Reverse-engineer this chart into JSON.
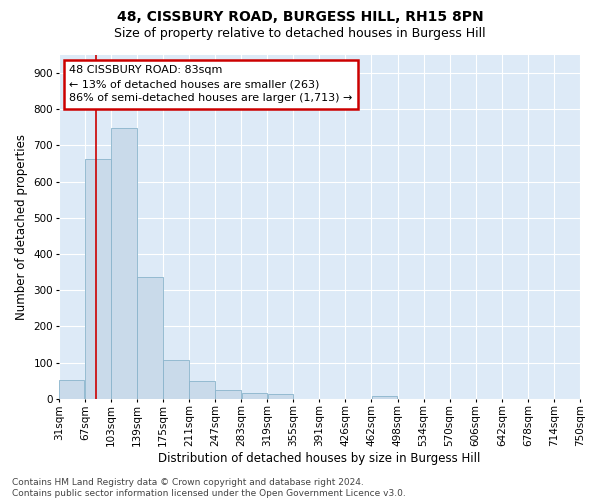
{
  "title1": "48, CISSBURY ROAD, BURGESS HILL, RH15 8PN",
  "title2": "Size of property relative to detached houses in Burgess Hill",
  "xlabel": "Distribution of detached houses by size in Burgess Hill",
  "ylabel": "Number of detached properties",
  "bin_labels": [
    "31sqm",
    "67sqm",
    "103sqm",
    "139sqm",
    "175sqm",
    "211sqm",
    "247sqm",
    "283sqm",
    "319sqm",
    "355sqm",
    "391sqm",
    "426sqm",
    "462sqm",
    "498sqm",
    "534sqm",
    "570sqm",
    "606sqm",
    "642sqm",
    "678sqm",
    "714sqm",
    "750sqm"
  ],
  "bar_heights": [
    52,
    663,
    748,
    337,
    107,
    50,
    24,
    16,
    13,
    0,
    0,
    0,
    9,
    0,
    0,
    0,
    0,
    0,
    0,
    0
  ],
  "bar_color": "#c9daea",
  "bar_edge_color": "#8ab4cc",
  "property_value": 83,
  "annotation_text": "48 CISSBURY ROAD: 83sqm\n← 13% of detached houses are smaller (263)\n86% of semi-detached houses are larger (1,713) →",
  "annotation_box_color": "white",
  "annotation_box_edge_color": "#cc0000",
  "property_line_color": "#cc0000",
  "ylim": [
    0,
    950
  ],
  "yticks": [
    0,
    100,
    200,
    300,
    400,
    500,
    600,
    700,
    800,
    900
  ],
  "background_color": "#ddeaf7",
  "grid_color": "white",
  "footer_text": "Contains HM Land Registry data © Crown copyright and database right 2024.\nContains public sector information licensed under the Open Government Licence v3.0.",
  "title1_fontsize": 10,
  "title2_fontsize": 9,
  "xlabel_fontsize": 8.5,
  "ylabel_fontsize": 8.5,
  "tick_fontsize": 7.5,
  "annotation_fontsize": 8,
  "footer_fontsize": 6.5
}
